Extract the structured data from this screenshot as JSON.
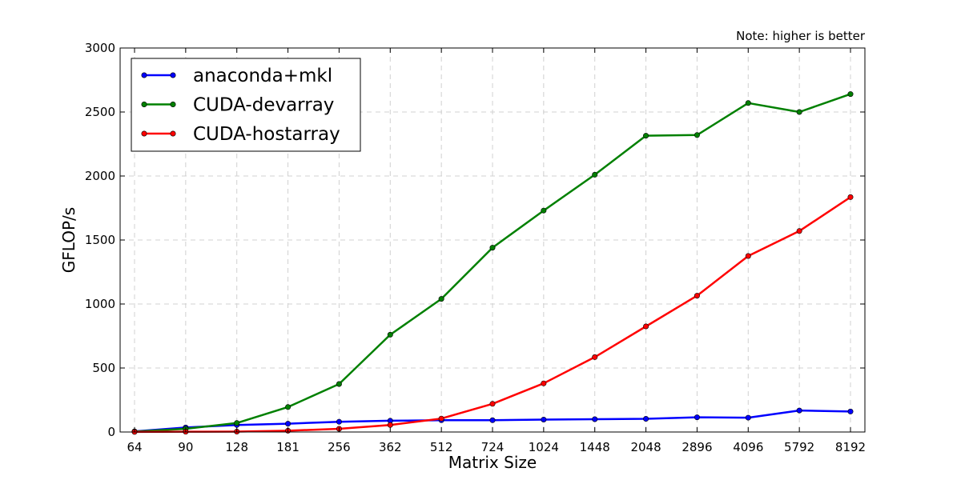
{
  "chart_data": {
    "type": "line",
    "note": "Note: higher is better",
    "xlabel": "Matrix Size",
    "ylabel": "GFLOP/s",
    "categories": [
      "64",
      "90",
      "128",
      "181",
      "256",
      "362",
      "512",
      "724",
      "1024",
      "1448",
      "2048",
      "2896",
      "4096",
      "5792",
      "8192"
    ],
    "ylim": [
      0,
      3000
    ],
    "yticks": [
      0,
      500,
      1000,
      1500,
      2000,
      2500,
      3000
    ],
    "grid": true,
    "legend_position": "top-left",
    "series": [
      {
        "name": "anaconda+mkl",
        "color": "#0000ff",
        "values": [
          5,
          35,
          55,
          65,
          80,
          88,
          92,
          92,
          97,
          100,
          103,
          115,
          112,
          168,
          160
        ]
      },
      {
        "name": "CUDA-devarray",
        "color": "#008000",
        "values": [
          3,
          25,
          70,
          195,
          375,
          760,
          1040,
          1440,
          1730,
          2010,
          2315,
          2320,
          2570,
          2500,
          2640
        ]
      },
      {
        "name": "CUDA-hostarray",
        "color": "#ff0000",
        "values": [
          1,
          2,
          3,
          10,
          25,
          55,
          105,
          220,
          380,
          585,
          825,
          1065,
          1375,
          1570,
          1835
        ]
      }
    ]
  }
}
